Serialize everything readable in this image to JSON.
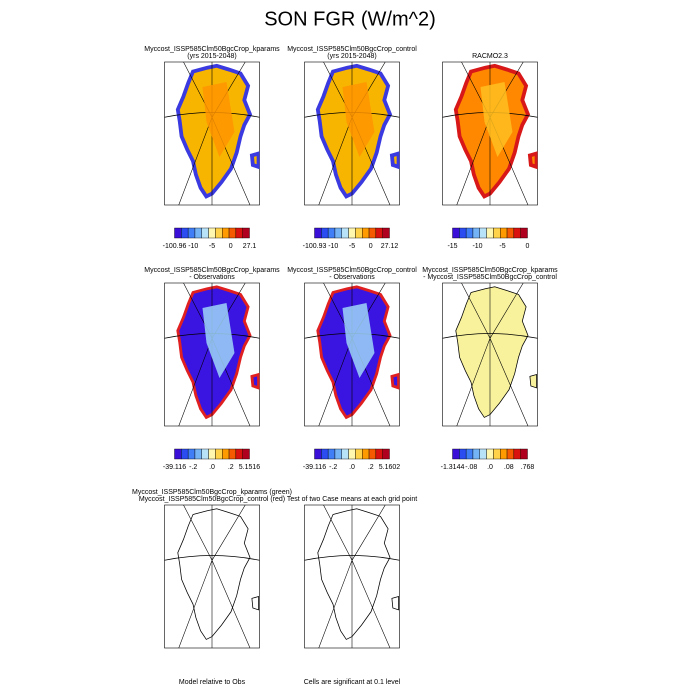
{
  "title": "SON FGR (W/m^2)",
  "panels": [
    {
      "title": [
        "Myccost_ISSP585Clm50BgcCrop_kparams",
        "(yrs 2015-2048)"
      ],
      "colorbar_labels": [
        "-100.96",
        "-10",
        "-5",
        "0",
        "27.1"
      ]
    },
    {
      "title": [
        "Myccost_ISSP585Clm50BgcCrop_control",
        "(yrs 2015-2048)"
      ],
      "colorbar_labels": [
        "-100.93",
        "-10",
        "-5",
        "0",
        "27.12"
      ]
    },
    {
      "title": [
        "RACMO2.3"
      ],
      "colorbar_labels": [
        "-15",
        "-10",
        "-5",
        "0"
      ]
    },
    {
      "title": [
        "Myccost_ISSP585Clm50BgcCrop_kparams",
        "- Observations"
      ],
      "colorbar_labels": [
        "-39.116",
        "-.2",
        ".0",
        ".2",
        "5.1516"
      ]
    },
    {
      "title": [
        "Myccost_ISSP585Clm50BgcCrop_control",
        "- Observations"
      ],
      "colorbar_labels": [
        "-39.116",
        "-.2",
        ".0",
        ".2",
        "5.1602"
      ]
    },
    {
      "title": [
        "Myccost_ISSP585Clm50BgcCrop_kparams",
        "- Myccost_ISSP585Clm50BgcCrop_control"
      ],
      "colorbar_labels": [
        "-1.3144",
        "-.08",
        ".0",
        ".08",
        ".768"
      ]
    },
    {
      "title": [
        "Myccost_ISSP585Clm50BgcCrop_kparams (green)",
        "Myccost_ISSP585Clm50BgcCrop_control (red)"
      ],
      "footer": "Model relative to Obs"
    },
    {
      "title": [
        "Test of two Case means at each grid point"
      ],
      "footer": "Cells are significant at 0.1 level"
    }
  ]
}
